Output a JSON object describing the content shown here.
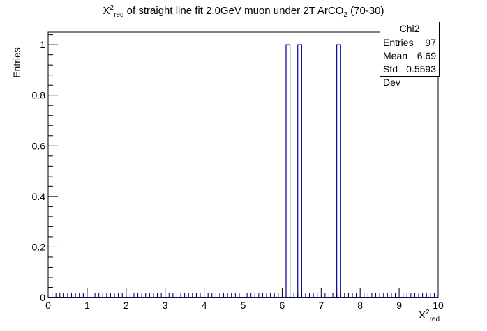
{
  "chart_data": {
    "type": "bar",
    "title_parts": {
      "chi": "X",
      "sup": "2",
      "sub": "red",
      "middle": " of straight line fit 2.0GeV muon under 2T ArCO",
      "co_sub": "2",
      "end": " (70-30)"
    },
    "xlabel": {
      "chi": "X",
      "sup": "2",
      "sub": "red"
    },
    "ylabel": "Entries",
    "xlim": [
      0,
      10
    ],
    "ylim": [
      0,
      1.05
    ],
    "bins": 100,
    "x_ticks": [
      "0",
      "1",
      "2",
      "3",
      "4",
      "5",
      "6",
      "7",
      "8",
      "9",
      "10"
    ],
    "y_ticks": [
      "0",
      "0.2",
      "0.4",
      "0.6",
      "0.8",
      "1"
    ],
    "y_tick_values": [
      0,
      0.2,
      0.4,
      0.6,
      0.8,
      1
    ],
    "bars": [
      {
        "x0": 6.1,
        "x1": 6.2,
        "y": 1
      },
      {
        "x0": 6.4,
        "x1": 6.5,
        "y": 1
      },
      {
        "x0": 7.4,
        "x1": 7.5,
        "y": 1
      }
    ],
    "line_color": "#000099",
    "stats": {
      "name": "Chi2",
      "rows": [
        {
          "label": "Entries",
          "value": "97"
        },
        {
          "label": "Mean",
          "value": "6.69"
        },
        {
          "label": "Std Dev",
          "value": "0.5593"
        }
      ]
    }
  }
}
